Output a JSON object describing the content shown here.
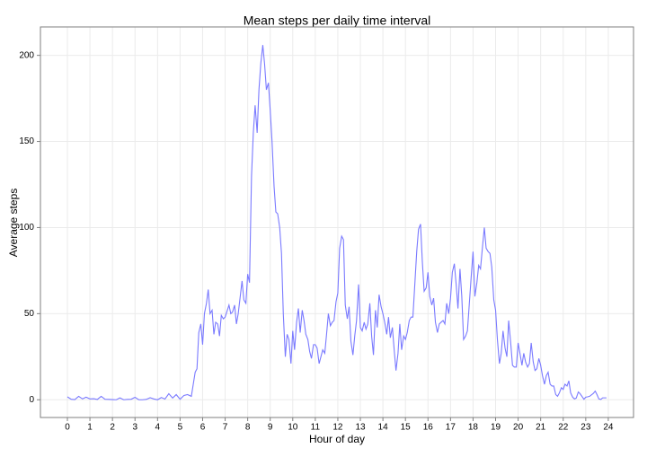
{
  "chart_data": {
    "type": "line",
    "title": "Mean steps per daily time interval",
    "x_label": "Hour of day",
    "y_label": "Average steps",
    "x": [
      0,
      0.17,
      0.33,
      0.5,
      0.67,
      0.83,
      1,
      1.17,
      1.33,
      1.5,
      1.67,
      1.83,
      2,
      2.17,
      2.33,
      2.5,
      2.67,
      2.83,
      3,
      3.17,
      3.33,
      3.5,
      3.67,
      3.83,
      4,
      4.17,
      4.33,
      4.5,
      4.67,
      4.83,
      5,
      5.17,
      5.33,
      5.5,
      5.67,
      5.75,
      5.83,
      5.92,
      6,
      6.08,
      6.17,
      6.25,
      6.33,
      6.42,
      6.5,
      6.58,
      6.67,
      6.75,
      6.83,
      6.92,
      7,
      7.17,
      7.25,
      7.33,
      7.42,
      7.5,
      7.58,
      7.75,
      7.83,
      7.92,
      8,
      8.08,
      8.17,
      8.25,
      8.33,
      8.42,
      8.5,
      8.58,
      8.67,
      8.75,
      8.83,
      8.92,
      9,
      9.08,
      9.17,
      9.25,
      9.33,
      9.42,
      9.5,
      9.58,
      9.67,
      9.75,
      9.83,
      9.92,
      10,
      10.08,
      10.17,
      10.25,
      10.33,
      10.42,
      10.5,
      10.58,
      10.67,
      10.75,
      10.83,
      10.92,
      11,
      11.08,
      11.17,
      11.25,
      11.33,
      11.42,
      11.5,
      11.58,
      11.67,
      11.75,
      11.83,
      11.92,
      12,
      12.08,
      12.17,
      12.25,
      12.33,
      12.42,
      12.5,
      12.58,
      12.67,
      12.75,
      12.83,
      12.92,
      13,
      13.08,
      13.17,
      13.25,
      13.33,
      13.42,
      13.5,
      13.58,
      13.67,
      13.75,
      13.83,
      13.92,
      14,
      14.08,
      14.17,
      14.25,
      14.33,
      14.42,
      14.5,
      14.58,
      14.67,
      14.75,
      14.83,
      14.92,
      15,
      15.08,
      15.17,
      15.25,
      15.33,
      15.42,
      15.5,
      15.58,
      15.67,
      15.75,
      15.83,
      15.92,
      16,
      16.08,
      16.17,
      16.25,
      16.33,
      16.42,
      16.5,
      16.58,
      16.67,
      16.75,
      16.83,
      16.92,
      17,
      17.08,
      17.17,
      17.25,
      17.33,
      17.42,
      17.5,
      17.58,
      17.67,
      17.75,
      17.83,
      17.92,
      18,
      18.08,
      18.17,
      18.25,
      18.33,
      18.42,
      18.5,
      18.58,
      18.67,
      18.75,
      18.83,
      18.92,
      19,
      19.08,
      19.17,
      19.25,
      19.33,
      19.42,
      19.5,
      19.58,
      19.67,
      19.75,
      19.83,
      19.92,
      20,
      20.08,
      20.17,
      20.25,
      20.33,
      20.42,
      20.5,
      20.58,
      20.67,
      20.75,
      20.83,
      20.92,
      21,
      21.08,
      21.17,
      21.25,
      21.33,
      21.42,
      21.5,
      21.58,
      21.67,
      21.75,
      21.83,
      21.92,
      22,
      22.08,
      22.17,
      22.25,
      22.33,
      22.42,
      22.5,
      22.58,
      22.67,
      22.75,
      22.83,
      22.92,
      23,
      23.08,
      23.17,
      23.33,
      23.42,
      23.5,
      23.58,
      23.67,
      23.75,
      23.92
    ],
    "series": [
      {
        "name": "Average steps",
        "color": "#7a7aff",
        "values": [
          1.7,
          0.3,
          0.1,
          2,
          0.5,
          1.5,
          0.5,
          0.6,
          0.2,
          2,
          0.3,
          0.2,
          0.1,
          0,
          1.1,
          0,
          0.2,
          0.3,
          1.4,
          0,
          0,
          0.2,
          1.2,
          0.5,
          0,
          1.3,
          0.4,
          3.5,
          1,
          3,
          0.3,
          2.5,
          3,
          2,
          16,
          18,
          39,
          44,
          32,
          50,
          56,
          64,
          50,
          52,
          38,
          45,
          44,
          37,
          49,
          47,
          48,
          55,
          50,
          51,
          55,
          44,
          50,
          69,
          58,
          56,
          73,
          68,
          130,
          155,
          171,
          155,
          180,
          195,
          206,
          195,
          180,
          184,
          168,
          150,
          124,
          109,
          108,
          100,
          85,
          50,
          25,
          38,
          35,
          21,
          40,
          29,
          45,
          53,
          39,
          52,
          46,
          38,
          35,
          28,
          24,
          32,
          32,
          30,
          21,
          25,
          29,
          27,
          38,
          50,
          43,
          45,
          46,
          57,
          62,
          88,
          95,
          93,
          55,
          47,
          54,
          34,
          26,
          37,
          46,
          67,
          42,
          40,
          45,
          41,
          44,
          56,
          37,
          26,
          52,
          42,
          61,
          54,
          50,
          45,
          38,
          48,
          36,
          42,
          29,
          17,
          27,
          44,
          29,
          37,
          35,
          39,
          46,
          48,
          48,
          68,
          86,
          99,
          102,
          80,
          63,
          65,
          74,
          60,
          55,
          59,
          45,
          39,
          44,
          45,
          46,
          44,
          56,
          50,
          59,
          74,
          79,
          67,
          53,
          76,
          60,
          35,
          37,
          40,
          55,
          72,
          86,
          60,
          68,
          78,
          76,
          89,
          100,
          88,
          86,
          85,
          77,
          58,
          52,
          35,
          21,
          27,
          40,
          30,
          25,
          46,
          33,
          20,
          19,
          19,
          33,
          27,
          20,
          27,
          22,
          19,
          21,
          33,
          22,
          17,
          18,
          24,
          20,
          14,
          9,
          14,
          16,
          9,
          8,
          8,
          3,
          2,
          4,
          7,
          6,
          9,
          8,
          11,
          4,
          1.5,
          0.5,
          1,
          4.5,
          3.5,
          2,
          0.3,
          1.5,
          1.7,
          2,
          3.6,
          5,
          3,
          0.5,
          0.2,
          1.1,
          1.1
        ]
      }
    ],
    "xlim": [
      -1.196,
      25.12
    ],
    "xticks": [
      0,
      1,
      2,
      3,
      4,
      5,
      6,
      7,
      8,
      9,
      10,
      11,
      12,
      13,
      14,
      15,
      16,
      17,
      18,
      19,
      20,
      21,
      22,
      23,
      24
    ],
    "ylim": [
      -10.3,
      216.5
    ],
    "yticks": [
      0,
      50,
      100,
      150,
      200
    ],
    "grid": true
  }
}
